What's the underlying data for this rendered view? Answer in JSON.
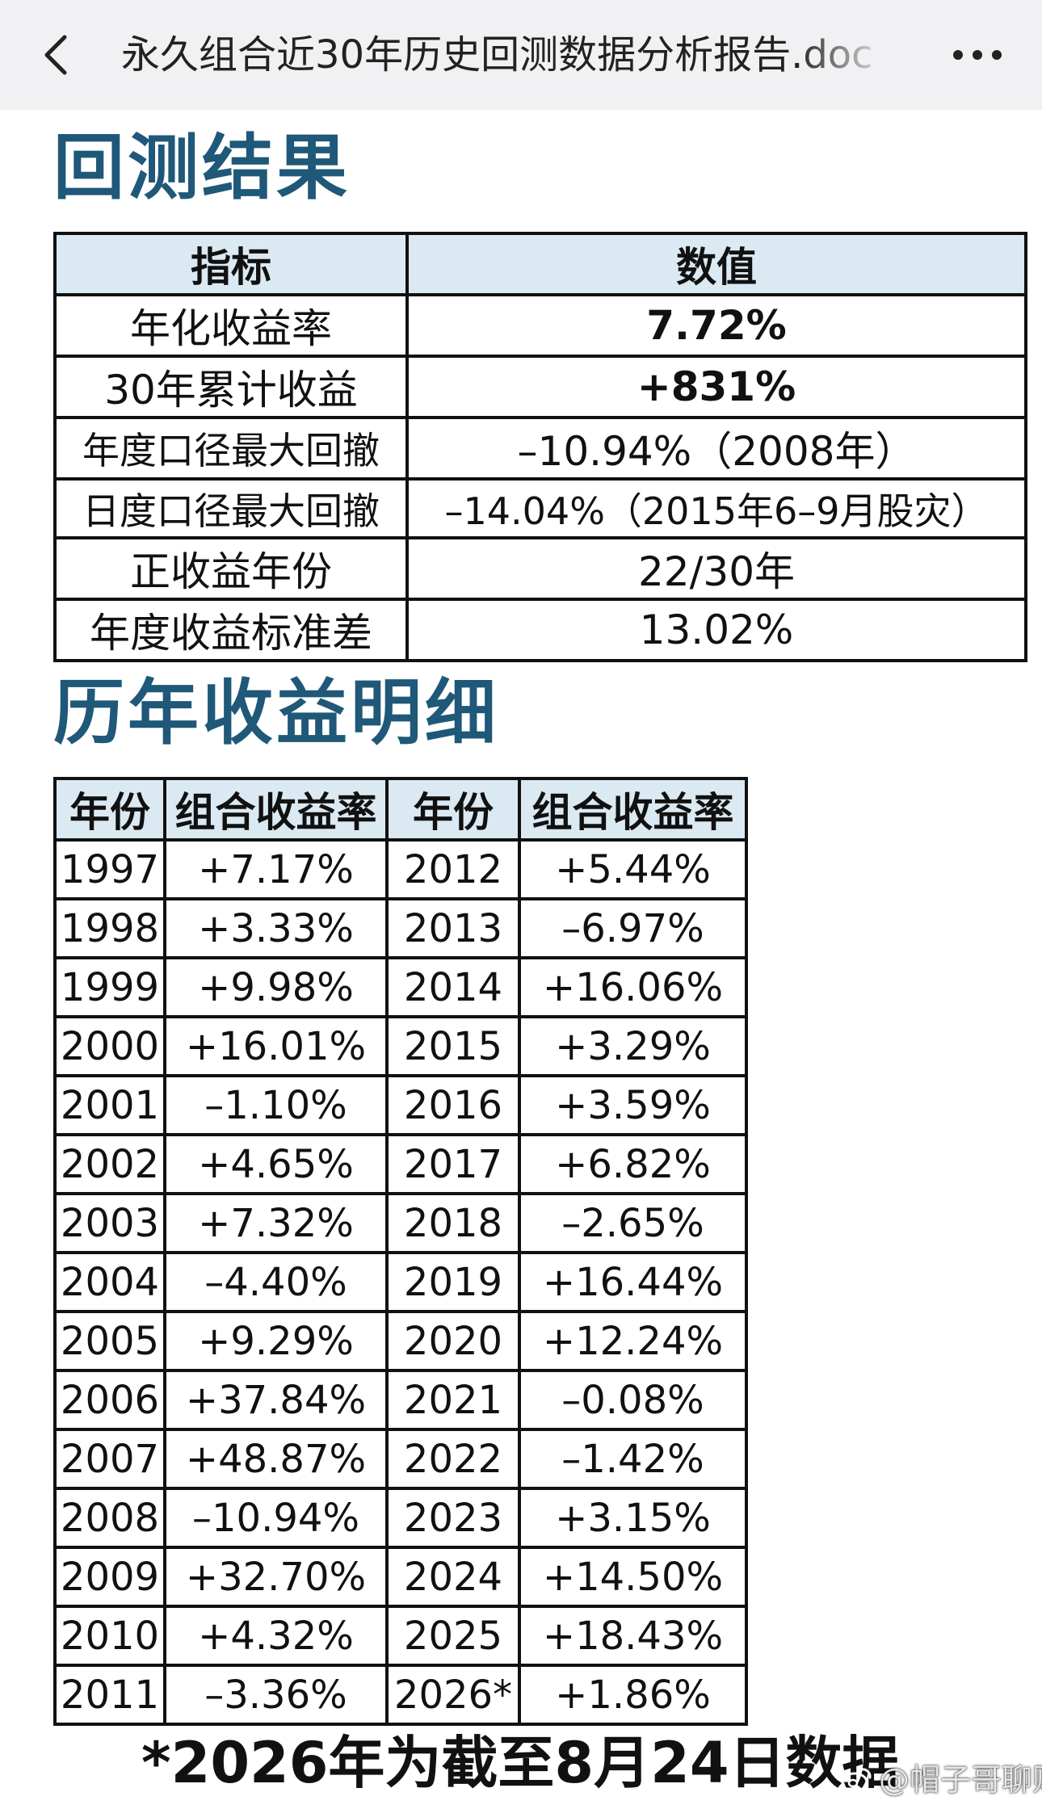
{
  "header": {
    "title": "永久组合近30年历史回测数据分析报告.doc",
    "back_icon": "chevron-left-icon",
    "more_icon": "ellipsis-icon"
  },
  "sections": {
    "backtest_title": "回测结果",
    "yearly_title": "历年收益明细"
  },
  "summary_table": {
    "headers": [
      "指标",
      "数值"
    ],
    "rows": [
      {
        "metric": "年化收益率",
        "value": "7.72%"
      },
      {
        "metric": "30年累计收益",
        "value": "+831%"
      },
      {
        "metric": "年度口径最大回撤",
        "value": "–10.94%（2008年）"
      },
      {
        "metric": "日度口径最大回撤",
        "value": "–14.04%（2015年6–9月股灾）"
      },
      {
        "metric": "正收益年份",
        "value": "22/30年"
      },
      {
        "metric": "年度收益标准差",
        "value": "13.02%"
      }
    ]
  },
  "yearly_table": {
    "headers": [
      "年份",
      "组合收益率",
      "年份",
      "组合收益率"
    ],
    "rows": [
      [
        "1997",
        "+7.17%",
        "2012",
        "+5.44%"
      ],
      [
        "1998",
        "+3.33%",
        "2013",
        "–6.97%"
      ],
      [
        "1999",
        "+9.98%",
        "2014",
        "+16.06%"
      ],
      [
        "2000",
        "+16.01%",
        "2015",
        "+3.29%"
      ],
      [
        "2001",
        "–1.10%",
        "2016",
        "+3.59%"
      ],
      [
        "2002",
        "+4.65%",
        "2017",
        "+6.82%"
      ],
      [
        "2003",
        "+7.32%",
        "2018",
        "–2.65%"
      ],
      [
        "2004",
        "–4.40%",
        "2019",
        "+16.44%"
      ],
      [
        "2005",
        "+9.29%",
        "2020",
        "+12.24%"
      ],
      [
        "2006",
        "+37.84%",
        "2021",
        "–0.08%"
      ],
      [
        "2007",
        "+48.87%",
        "2022",
        "–1.42%"
      ],
      [
        "2008",
        "–10.94%",
        "2023",
        "+3.15%"
      ],
      [
        "2009",
        "+32.70%",
        "2024",
        "+14.50%"
      ],
      [
        "2010",
        "+4.32%",
        "2025",
        "+18.43%"
      ],
      [
        "2011",
        "–3.36%",
        "2026*",
        "+1.86%"
      ]
    ]
  },
  "footnote": "*2026年为截至8月24日数据",
  "watermark": "@帽子哥聊财经",
  "colors": {
    "heading": "#1f5878",
    "table_header_bg": "#dbe9f2",
    "topbar_bg": "#f1f1f3"
  }
}
